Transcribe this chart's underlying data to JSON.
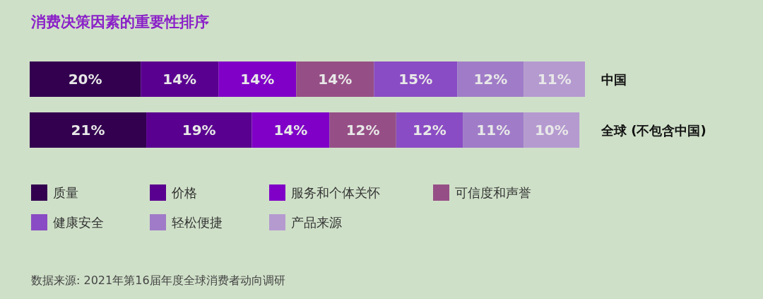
{
  "chart_data": {
    "type": "bar",
    "orientation": "horizontal",
    "stacked": true,
    "legend": "bottom",
    "title": "消费决策因素的重要性排序",
    "categories": [
      "中国",
      "全球 (不包含中国)"
    ],
    "series": [
      {
        "name": "质量",
        "color": "#33004f",
        "values": [
          20,
          21
        ],
        "value_labels": [
          "20%",
          "21%"
        ]
      },
      {
        "name": "价格",
        "color": "#5a0090",
        "values": [
          14,
          19
        ],
        "value_labels": [
          "14%",
          "19%"
        ]
      },
      {
        "name": "服务和个体关怀",
        "color": "#8000c8",
        "values": [
          14,
          14
        ],
        "value_labels": [
          "14%",
          "14%"
        ]
      },
      {
        "name": "可信度和声誉",
        "color": "#964f86",
        "values": [
          14,
          12
        ],
        "value_labels": [
          "14%",
          "12%"
        ]
      },
      {
        "name": "健康安全",
        "color": "#8a4cc4",
        "values": [
          15,
          12
        ],
        "value_labels": [
          "15%",
          "12%"
        ]
      },
      {
        "name": "轻松便捷",
        "color": "#a07cc8",
        "values": [
          12,
          11
        ],
        "value_labels": [
          "12%",
          "11%"
        ]
      },
      {
        "name": "产品来源",
        "color": "#b59ad0",
        "values": [
          11,
          10
        ],
        "value_labels": [
          "11%",
          "10%"
        ]
      }
    ],
    "annotations": [
      "数据来源: 2021年第16届年度全球消费者动向调研"
    ]
  }
}
